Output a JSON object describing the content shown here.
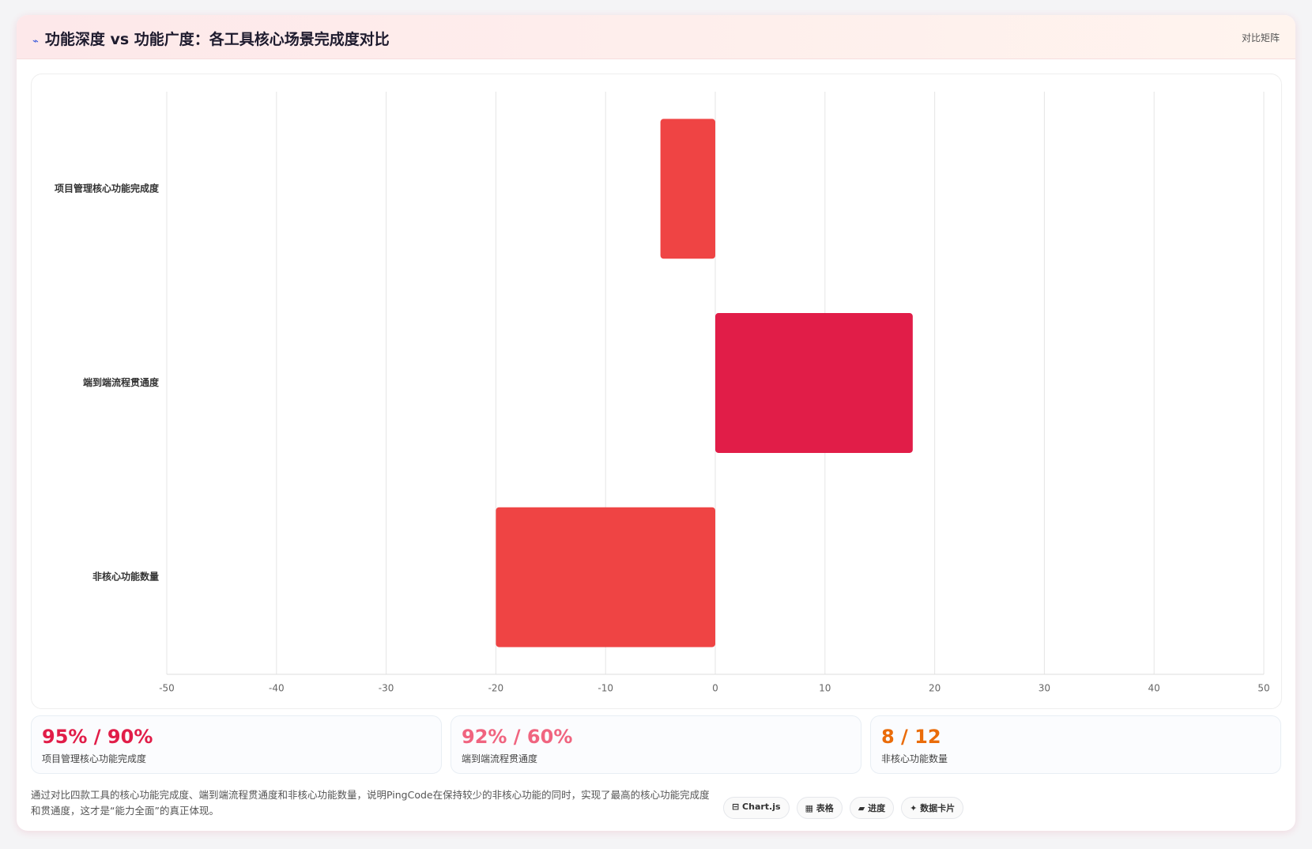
{
  "header": {
    "title": "功能深度 vs 功能广度：各工具核心场景完成度对比",
    "tag": "对比矩阵"
  },
  "chart_data": {
    "type": "bar",
    "orientation": "horizontal",
    "categories": [
      "项目管理核心功能完成度",
      "端到端流程贯通度",
      "非核心功能数量"
    ],
    "values": [
      -5,
      18,
      -20
    ],
    "colors": [
      "#ef4444",
      "#e11d48",
      "#ef4444"
    ],
    "xlim": [
      -50,
      50
    ],
    "xticks": [
      -50,
      -40,
      -30,
      -20,
      -10,
      0,
      10,
      20,
      30,
      40,
      50
    ],
    "grid": true
  },
  "stats": [
    {
      "value": "95% / 90%",
      "label": "项目管理核心功能完成度",
      "color": "#e11d48"
    },
    {
      "value": "92% / 60%",
      "label": "端到端流程贯通度",
      "color": "#f0647f"
    },
    {
      "value": "8 / 12",
      "label": "非核心功能数量",
      "color": "#ea6c0a"
    }
  ],
  "footer": {
    "text": "通过对比四款工具的核心功能完成度、端到端流程贯通度和非核心功能数量，说明PingCode在保持较少的非核心功能的同时，实现了最高的核心功能完成度和贯通度，这才是“能力全面”的真正体现。",
    "badges": [
      "Chart.js",
      "表格",
      "进度",
      "数据卡片"
    ]
  }
}
